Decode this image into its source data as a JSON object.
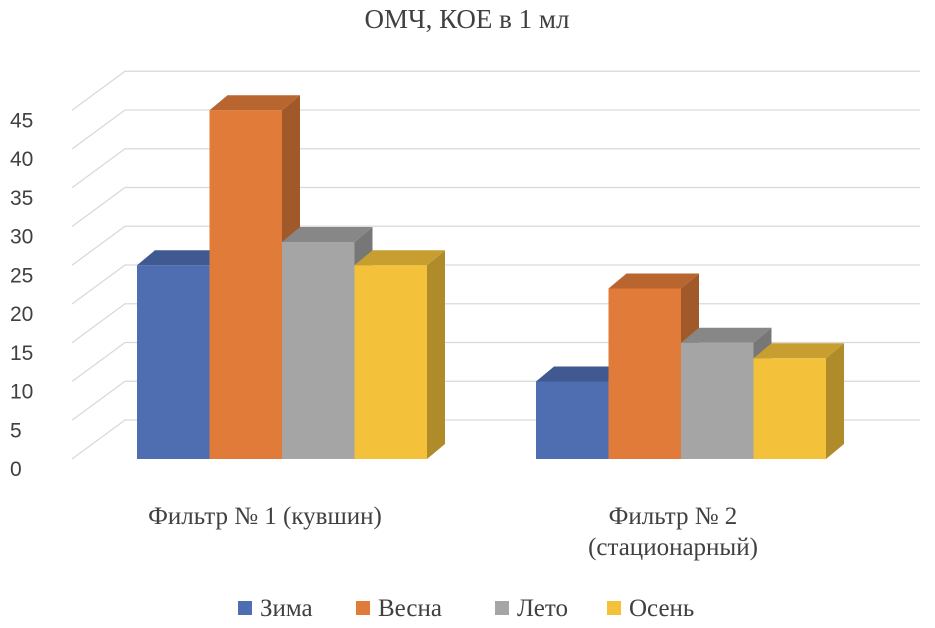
{
  "chart_data": {
    "type": "bar",
    "title": "ОМЧ, КОЕ в 1 мл",
    "xlabel": "",
    "ylabel": "",
    "ylim": [
      0,
      45
    ],
    "yticks": [
      "0",
      "5",
      "10",
      "15",
      "20",
      "25",
      "30",
      "35",
      "40",
      "45"
    ],
    "categories": [
      [
        "Фильтр № 1 (кувшин)"
      ],
      [
        "Фильтр № 2",
        "(стационарный)"
      ]
    ],
    "series": [
      {
        "name": "Зима",
        "color": "#4e6eb1",
        "values": [
          25,
          10
        ]
      },
      {
        "name": "Весна",
        "color": "#e07b39",
        "values": [
          45,
          22
        ]
      },
      {
        "name": "Лето",
        "color": "#a5a5a5",
        "values": [
          28,
          15
        ]
      },
      {
        "name": "Осень",
        "color": "#f4c13b",
        "values": [
          25,
          13
        ]
      }
    ],
    "legend": "bottom",
    "grid": true,
    "style": "3d-clustered-column"
  }
}
